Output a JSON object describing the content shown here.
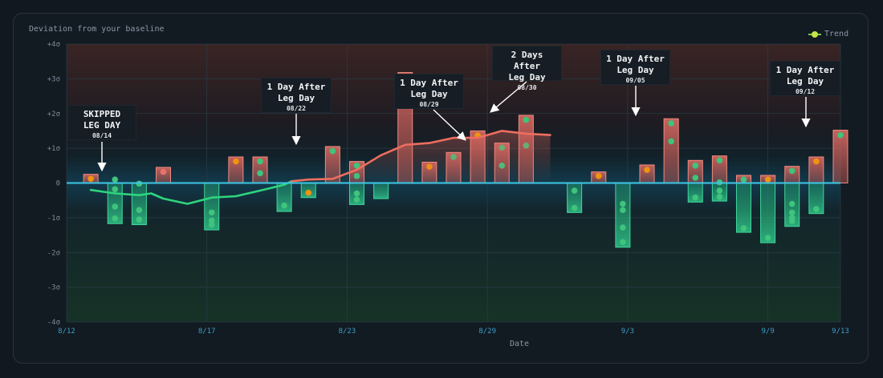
{
  "title": "Deviation from your baseline",
  "legend_label": "Trend",
  "colors": {
    "positive": "#e46a63",
    "negative": "#2fc38a",
    "baseline": "#3ec8e6",
    "dot_green": "#3fc47b",
    "dot_orange": "#f0930f",
    "dot_red": "#e8736b",
    "trend_green": "#2ed47e",
    "trend_red": "#ee6e5f"
  },
  "chart_data": {
    "type": "bar",
    "title": "Deviation from your baseline",
    "xlabel": "Date",
    "ylabel": "",
    "x_range": [
      "2023-08-12",
      "2023-09-13"
    ],
    "ylim": [
      -4,
      4
    ],
    "y_ticks": [
      "+4σ",
      "+3σ",
      "+2σ",
      "+1σ",
      "0",
      "-1σ",
      "-2σ",
      "-3σ",
      "-4σ"
    ],
    "y_tick_values": [
      4,
      3,
      2,
      1,
      0,
      -1,
      -2,
      -3,
      -4
    ],
    "x_ticks": [
      "8/12",
      "8/17",
      "8/23",
      "8/29",
      "9/3",
      "9/9",
      "9/13"
    ],
    "x_tick_dates": [
      "2023-08-12",
      "2023-08-17.8",
      "2023-08-23.6",
      "2023-08-29.4",
      "2023-09-04.2",
      "2023-09-10",
      "2023-09-13"
    ],
    "grid": true,
    "legend": "top-right",
    "bars": [
      {
        "date": "2023-08-13",
        "value": 0.25,
        "dots": [
          {
            "v": 0.12,
            "c": "orange"
          }
        ]
      },
      {
        "date": "2023-08-14",
        "value": -1.17,
        "dots": [
          {
            "v": 0.1,
            "c": "green"
          },
          {
            "v": -0.18,
            "c": "green"
          },
          {
            "v": -0.68,
            "c": "green"
          },
          {
            "v": -1.02,
            "c": "green"
          }
        ]
      },
      {
        "date": "2023-08-15",
        "value": -1.2,
        "dots": [
          {
            "v": -0.02,
            "c": "green"
          },
          {
            "v": -0.78,
            "c": "green"
          },
          {
            "v": -1.05,
            "c": "green"
          }
        ]
      },
      {
        "date": "2023-08-16",
        "value": 0.45,
        "dots": [
          {
            "v": 0.32,
            "c": "red"
          }
        ]
      },
      {
        "date": "2023-08-18",
        "value": -1.35,
        "dots": [
          {
            "v": -0.85,
            "c": "green"
          },
          {
            "v": -1.08,
            "c": "green"
          },
          {
            "v": -1.2,
            "c": "green"
          }
        ]
      },
      {
        "date": "2023-08-19",
        "value": 0.75,
        "dots": [
          {
            "v": 0.62,
            "c": "orange"
          }
        ]
      },
      {
        "date": "2023-08-20",
        "value": 0.75,
        "dots": [
          {
            "v": 0.62,
            "c": "green"
          },
          {
            "v": 0.28,
            "c": "green"
          }
        ]
      },
      {
        "date": "2023-08-20.999",
        "value": -0.82,
        "dots": [
          {
            "v": -0.65,
            "c": "green"
          }
        ]
      },
      {
        "date": "2023-08-22",
        "value": -0.42,
        "dots": [
          {
            "v": -0.28,
            "c": "orange"
          }
        ]
      },
      {
        "date": "2023-08-23",
        "value": 1.05,
        "dots": [
          {
            "v": 0.92,
            "c": "green"
          }
        ]
      },
      {
        "date": "2023-08-23.999",
        "value": -0.62,
        "dots": [
          {
            "v": -0.48,
            "c": "green"
          }
        ]
      },
      {
        "date": "2023-08-24",
        "value": 0.62,
        "dots": [
          {
            "v": 0.5,
            "c": "green"
          },
          {
            "v": 0.2,
            "c": "green"
          },
          {
            "v": -0.3,
            "c": "green"
          }
        ]
      },
      {
        "date": "2023-08-25",
        "value": -0.45,
        "dots": []
      },
      {
        "date": "2023-08-26",
        "value": 3.18,
        "dots": [
          {
            "v": 3.05,
            "c": "green"
          },
          {
            "v": 2.9,
            "c": "green"
          }
        ]
      },
      {
        "date": "2023-08-27",
        "value": 0.6,
        "dots": [
          {
            "v": 0.47,
            "c": "orange"
          }
        ]
      },
      {
        "date": "2023-08-28",
        "value": 0.88,
        "dots": [
          {
            "v": 0.75,
            "c": "green"
          }
        ]
      },
      {
        "date": "2023-08-29",
        "value": 1.5,
        "dots": [
          {
            "v": 1.37,
            "c": "orange"
          }
        ]
      },
      {
        "date": "2023-08-30",
        "value": 1.15,
        "dots": [
          {
            "v": 1.02,
            "c": "green"
          },
          {
            "v": 0.5,
            "c": "green"
          }
        ]
      },
      {
        "date": "2023-08-31",
        "value": 1.95,
        "dots": [
          {
            "v": 1.82,
            "c": "green"
          },
          {
            "v": 1.08,
            "c": "green"
          }
        ]
      },
      {
        "date": "2023-09-02",
        "value": -0.85,
        "dots": [
          {
            "v": -0.22,
            "c": "green"
          },
          {
            "v": -0.72,
            "c": "green"
          }
        ]
      },
      {
        "date": "2023-09-03",
        "value": 0.32,
        "dots": [
          {
            "v": 0.2,
            "c": "orange"
          }
        ]
      },
      {
        "date": "2023-09-04",
        "value": -1.85,
        "dots": [
          {
            "v": -0.6,
            "c": "green"
          },
          {
            "v": -0.78,
            "c": "green"
          },
          {
            "v": -1.28,
            "c": "green"
          },
          {
            "v": -1.7,
            "c": "green"
          }
        ]
      },
      {
        "date": "2023-09-05",
        "value": 0.52,
        "dots": [
          {
            "v": 0.38,
            "c": "orange"
          }
        ]
      },
      {
        "date": "2023-09-06",
        "value": 1.85,
        "dots": [
          {
            "v": 1.72,
            "c": "green"
          },
          {
            "v": 1.2,
            "c": "green"
          }
        ]
      },
      {
        "date": "2023-09-06.999",
        "value": -0.55,
        "dots": [
          {
            "v": -0.42,
            "c": "green"
          }
        ]
      },
      {
        "date": "2023-09-07",
        "value": 0.65,
        "dots": [
          {
            "v": 0.5,
            "c": "green"
          },
          {
            "v": 0.15,
            "c": "green"
          }
        ]
      },
      {
        "date": "2023-09-07.999",
        "value": -0.52,
        "dots": [
          {
            "v": -0.22,
            "c": "green"
          },
          {
            "v": -0.4,
            "c": "green"
          }
        ]
      },
      {
        "date": "2023-09-08",
        "value": 0.78,
        "dots": [
          {
            "v": 0.65,
            "c": "green"
          },
          {
            "v": 0.02,
            "c": "green"
          }
        ]
      },
      {
        "date": "2023-09-08.999",
        "value": -1.42,
        "dots": [
          {
            "v": -1.3,
            "c": "green"
          }
        ]
      },
      {
        "date": "2023-09-09",
        "value": 0.22,
        "dots": [
          {
            "v": 0.1,
            "c": "green"
          }
        ]
      },
      {
        "date": "2023-09-09.999",
        "value": -1.72,
        "dots": [
          {
            "v": -1.58,
            "c": "green"
          }
        ]
      },
      {
        "date": "2023-09-10",
        "value": 0.22,
        "dots": [
          {
            "v": 0.1,
            "c": "orange"
          }
        ]
      },
      {
        "date": "2023-09-10.999",
        "value": -1.25,
        "dots": [
          {
            "v": -0.6,
            "c": "green"
          },
          {
            "v": -0.85,
            "c": "green"
          },
          {
            "v": -1.0,
            "c": "green"
          },
          {
            "v": -1.1,
            "c": "green"
          }
        ]
      },
      {
        "date": "2023-09-11",
        "value": 0.48,
        "dots": [
          {
            "v": 0.35,
            "c": "green"
          }
        ]
      },
      {
        "date": "2023-09-11.999",
        "value": -0.88,
        "dots": [
          {
            "v": -0.75,
            "c": "green"
          }
        ]
      },
      {
        "date": "2023-09-12",
        "value": 0.75,
        "dots": [
          {
            "v": 0.62,
            "c": "orange"
          }
        ]
      },
      {
        "date": "2023-09-13",
        "value": 1.52,
        "dots": [
          {
            "v": 1.38,
            "c": "green"
          }
        ]
      }
    ],
    "trend": [
      {
        "date": "2023-08-13",
        "value": -0.2
      },
      {
        "date": "2023-08-14",
        "value": -0.3
      },
      {
        "date": "2023-08-15",
        "value": -0.35
      },
      {
        "date": "2023-08-15.5",
        "value": -0.3
      },
      {
        "date": "2023-08-16",
        "value": -0.45
      },
      {
        "date": "2023-08-17",
        "value": -0.6
      },
      {
        "date": "2023-08-18",
        "value": -0.42
      },
      {
        "date": "2023-08-19",
        "value": -0.38
      },
      {
        "date": "2023-08-20",
        "value": -0.22
      },
      {
        "date": "2023-08-21",
        "value": -0.05
      },
      {
        "date": "2023-08-21.3",
        "value": 0.05
      },
      {
        "date": "2023-08-22",
        "value": 0.1
      },
      {
        "date": "2023-08-23",
        "value": 0.12
      },
      {
        "date": "2023-08-24",
        "value": 0.38
      },
      {
        "date": "2023-08-25",
        "value": 0.8
      },
      {
        "date": "2023-08-26",
        "value": 1.1
      },
      {
        "date": "2023-08-27",
        "value": 1.15
      },
      {
        "date": "2023-08-28",
        "value": 1.3
      },
      {
        "date": "2023-08-29",
        "value": 1.3
      },
      {
        "date": "2023-08-30",
        "value": 1.5
      },
      {
        "date": "2023-08-31",
        "value": 1.42
      },
      {
        "date": "2023-09-01",
        "value": 1.38
      }
    ],
    "annotations": [
      {
        "lines": [
          "SKIPPED",
          "LEG DAY"
        ],
        "date": "08/14",
        "target_date": "2023-08-13"
      },
      {
        "lines": [
          "1 Day After",
          "Leg Day"
        ],
        "date": "08/22",
        "target_date": "2023-08-23"
      },
      {
        "lines": [
          "1 Day After",
          "Leg Day"
        ],
        "date": "08/29",
        "target_date": "2023-08-30"
      },
      {
        "lines": [
          "2 Days After",
          "Leg Day"
        ],
        "date": "08/30",
        "target_date": "2023-08-31"
      },
      {
        "lines": [
          "1 Day After",
          "Leg Day"
        ],
        "date": "09/05",
        "target_date": "2023-09-06"
      },
      {
        "lines": [
          "1 Day After",
          "Leg Day"
        ],
        "date": "09/12",
        "target_date": "2023-09-13"
      }
    ]
  }
}
